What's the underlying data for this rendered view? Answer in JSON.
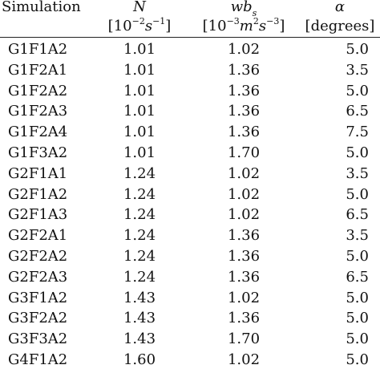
{
  "header": {
    "simulation": "Simulation",
    "n_symbol": "N",
    "n_unit_prefix": "[10",
    "n_unit_exp": "−2",
    "n_unit_s": "s",
    "n_unit_s_exp": "−1",
    "n_unit_suffix": "]",
    "wb_symbol": "wb",
    "wb_sub": "s",
    "wb_unit_prefix": "[10",
    "wb_unit_exp": "−3",
    "wb_unit_m": "m",
    "wb_unit_m_exp": "2",
    "wb_unit_s": "s",
    "wb_unit_s_exp": "−3",
    "wb_unit_suffix": "]",
    "alpha_symbol": "α",
    "alpha_unit": "[degrees]"
  },
  "rows": [
    {
      "sim": "G1F1A2",
      "n": "1.01",
      "wb": "1.02",
      "alpha": "5.0"
    },
    {
      "sim": "G1F2A1",
      "n": "1.01",
      "wb": "1.36",
      "alpha": "3.5"
    },
    {
      "sim": "G1F2A2",
      "n": "1.01",
      "wb": "1.36",
      "alpha": "5.0"
    },
    {
      "sim": "G1F2A3",
      "n": "1.01",
      "wb": "1.36",
      "alpha": "6.5"
    },
    {
      "sim": "G1F2A4",
      "n": "1.01",
      "wb": "1.36",
      "alpha": "7.5"
    },
    {
      "sim": "G1F3A2",
      "n": "1.01",
      "wb": "1.70",
      "alpha": "5.0"
    },
    {
      "sim": "G2F1A1",
      "n": "1.24",
      "wb": "1.02",
      "alpha": "3.5"
    },
    {
      "sim": "G2F1A2",
      "n": "1.24",
      "wb": "1.02",
      "alpha": "5.0"
    },
    {
      "sim": "G2F1A3",
      "n": "1.24",
      "wb": "1.02",
      "alpha": "6.5"
    },
    {
      "sim": "G2F2A1",
      "n": "1.24",
      "wb": "1.36",
      "alpha": "3.5"
    },
    {
      "sim": "G2F2A2",
      "n": "1.24",
      "wb": "1.36",
      "alpha": "5.0"
    },
    {
      "sim": "G2F2A3",
      "n": "1.24",
      "wb": "1.36",
      "alpha": "6.5"
    },
    {
      "sim": "G3F1A2",
      "n": "1.43",
      "wb": "1.02",
      "alpha": "5.0"
    },
    {
      "sim": "G3F2A2",
      "n": "1.43",
      "wb": "1.36",
      "alpha": "5.0"
    },
    {
      "sim": "G3F3A2",
      "n": "1.43",
      "wb": "1.70",
      "alpha": "5.0"
    },
    {
      "sim": "G4F1A2",
      "n": "1.60",
      "wb": "1.02",
      "alpha": "5.0"
    }
  ]
}
